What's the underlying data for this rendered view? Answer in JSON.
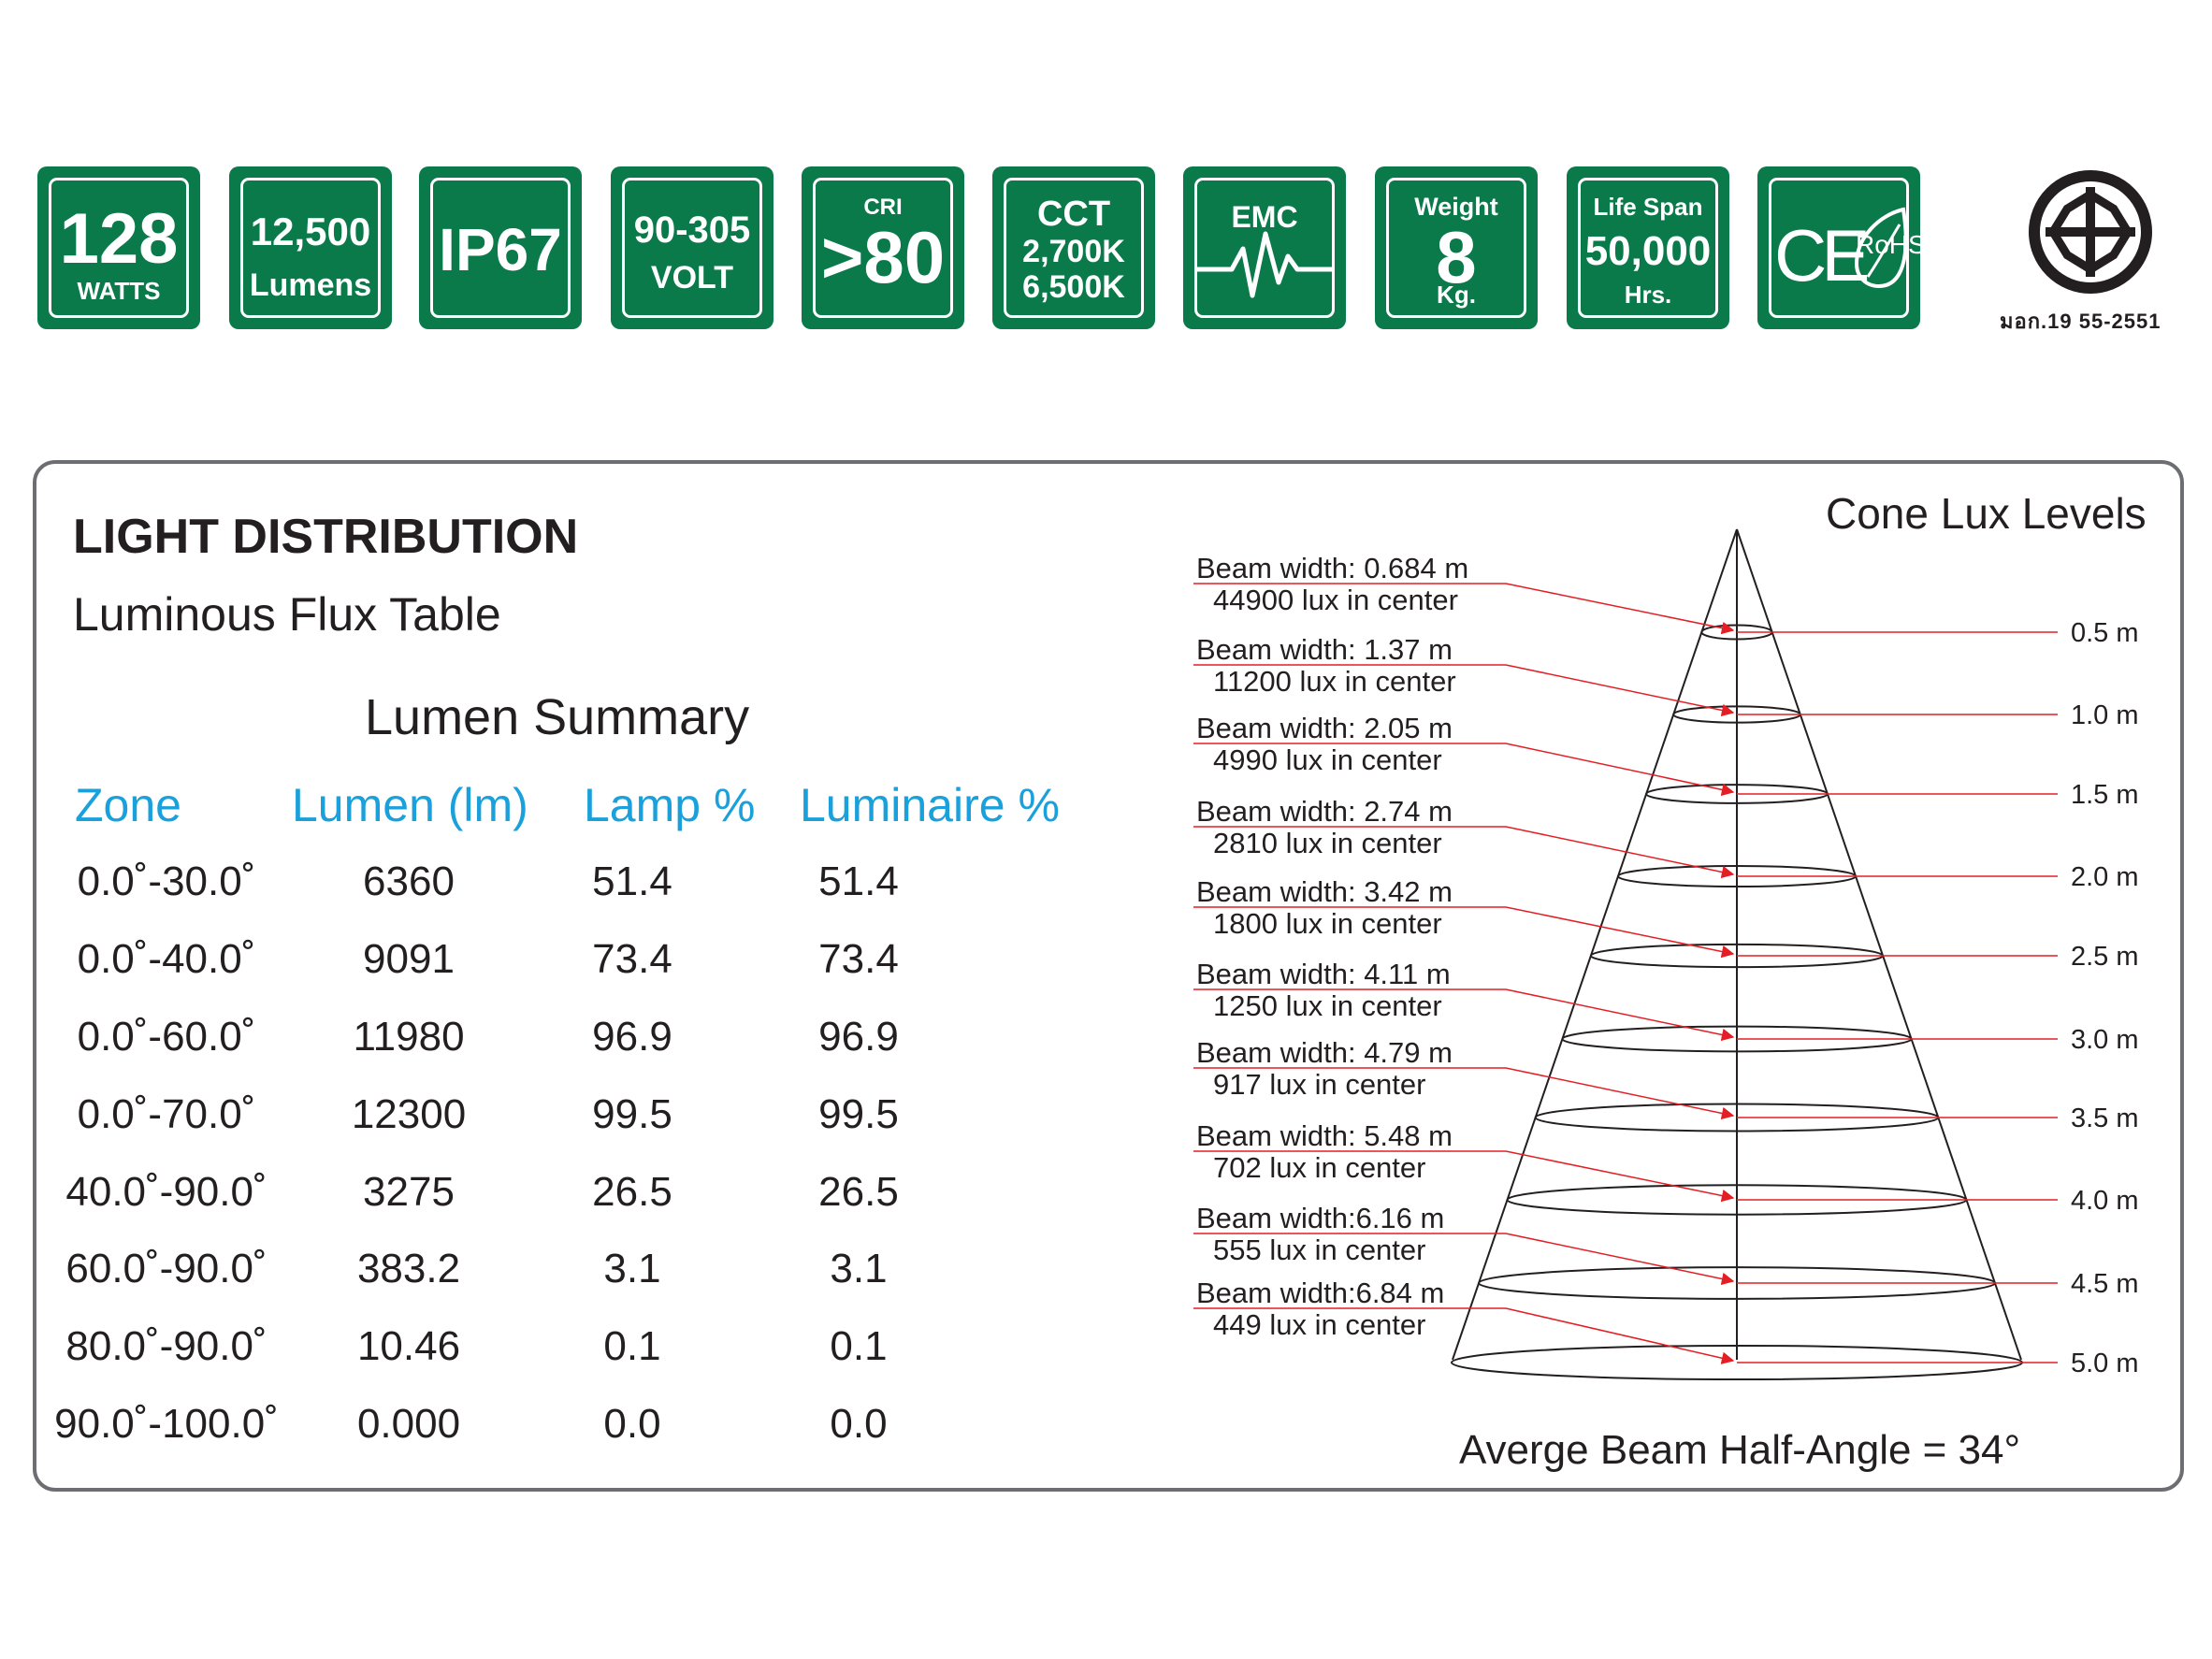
{
  "badges": [
    {
      "id": "power",
      "big": "128",
      "small": "WATTS"
    },
    {
      "id": "lumens",
      "top": "12,500",
      "bottom": "Lumens"
    },
    {
      "id": "ip",
      "big": "IP67"
    },
    {
      "id": "volt",
      "top": "90-305",
      "bottom": "VOLT"
    },
    {
      "id": "cri",
      "top": "CRI",
      "big": ">80"
    },
    {
      "id": "cct",
      "l1": "CCT",
      "l2": "2,700K",
      "l3": "6,500K"
    },
    {
      "id": "emc",
      "top": "EMC"
    },
    {
      "id": "weight",
      "top": "Weight",
      "big": "8",
      "bottom": "Kg."
    },
    {
      "id": "life",
      "top": "Life Span",
      "big": "50,000",
      "bottom": "Hrs."
    },
    {
      "id": "cert",
      "ce": "CE",
      "rohs": "RoHS"
    }
  ],
  "tis_mark": {
    "caption": "มอก.19 55-2551"
  },
  "panel": {
    "title": "LIGHT DISTRIBUTION",
    "subtitle": "Luminous Flux Table",
    "table_title": "Lumen Summary",
    "headers": [
      "Zone",
      "Lumen (lm)",
      "Lamp %",
      "Luminaire %"
    ],
    "rows": [
      [
        "0.0˚-30.0˚",
        "6360",
        "51.4",
        "51.4"
      ],
      [
        "0.0˚-40.0˚",
        "9091",
        "73.4",
        "73.4"
      ],
      [
        "0.0˚-60.0˚",
        "11980",
        "96.9",
        "96.9"
      ],
      [
        "0.0˚-70.0˚",
        "12300",
        "99.5",
        "99.5"
      ],
      [
        "40.0˚-90.0˚",
        "3275",
        "26.5",
        "26.5"
      ],
      [
        "60.0˚-90.0˚",
        "383.2",
        "3.1",
        "3.1"
      ],
      [
        "80.0˚-90.0˚",
        "10.46",
        "0.1",
        "0.1"
      ],
      [
        "90.0˚-100.0˚",
        "0.000",
        "0.0",
        "0.0"
      ]
    ]
  },
  "cone": {
    "title": "Cone Lux Levels",
    "footer": "Averge Beam Half-Angle = 34°",
    "levels": [
      {
        "distance": "0.5 m",
        "beam": "Beam width: 0.684 m",
        "lux": "44900 lux in center"
      },
      {
        "distance": "1.0 m",
        "beam": "Beam width: 1.37 m",
        "lux": "11200 lux in center"
      },
      {
        "distance": "1.5 m",
        "beam": "Beam width: 2.05 m",
        "lux": "4990 lux in center"
      },
      {
        "distance": "2.0 m",
        "beam": "Beam width: 2.74 m",
        "lux": "2810 lux in center"
      },
      {
        "distance": "2.5 m",
        "beam": "Beam width: 3.42 m",
        "lux": "1800 lux in center"
      },
      {
        "distance": "3.0 m",
        "beam": "Beam width: 4.11 m",
        "lux": "1250 lux in center"
      },
      {
        "distance": "3.5 m",
        "beam": "Beam width: 4.79 m",
        "lux": "917 lux in center"
      },
      {
        "distance": "4.0 m",
        "beam": "Beam width: 5.48 m",
        "lux": "702 lux in center"
      },
      {
        "distance": "4.5 m",
        "beam": "Beam width:6.16 m",
        "lux": "555 lux in center"
      },
      {
        "distance": "5.0 m",
        "beam": "Beam width:6.84 m",
        "lux": "449 lux in center"
      }
    ]
  },
  "colors": {
    "badge_green": "#0b7a4b",
    "header_blue": "#1aa0db",
    "arrow_red": "#e31e24"
  }
}
